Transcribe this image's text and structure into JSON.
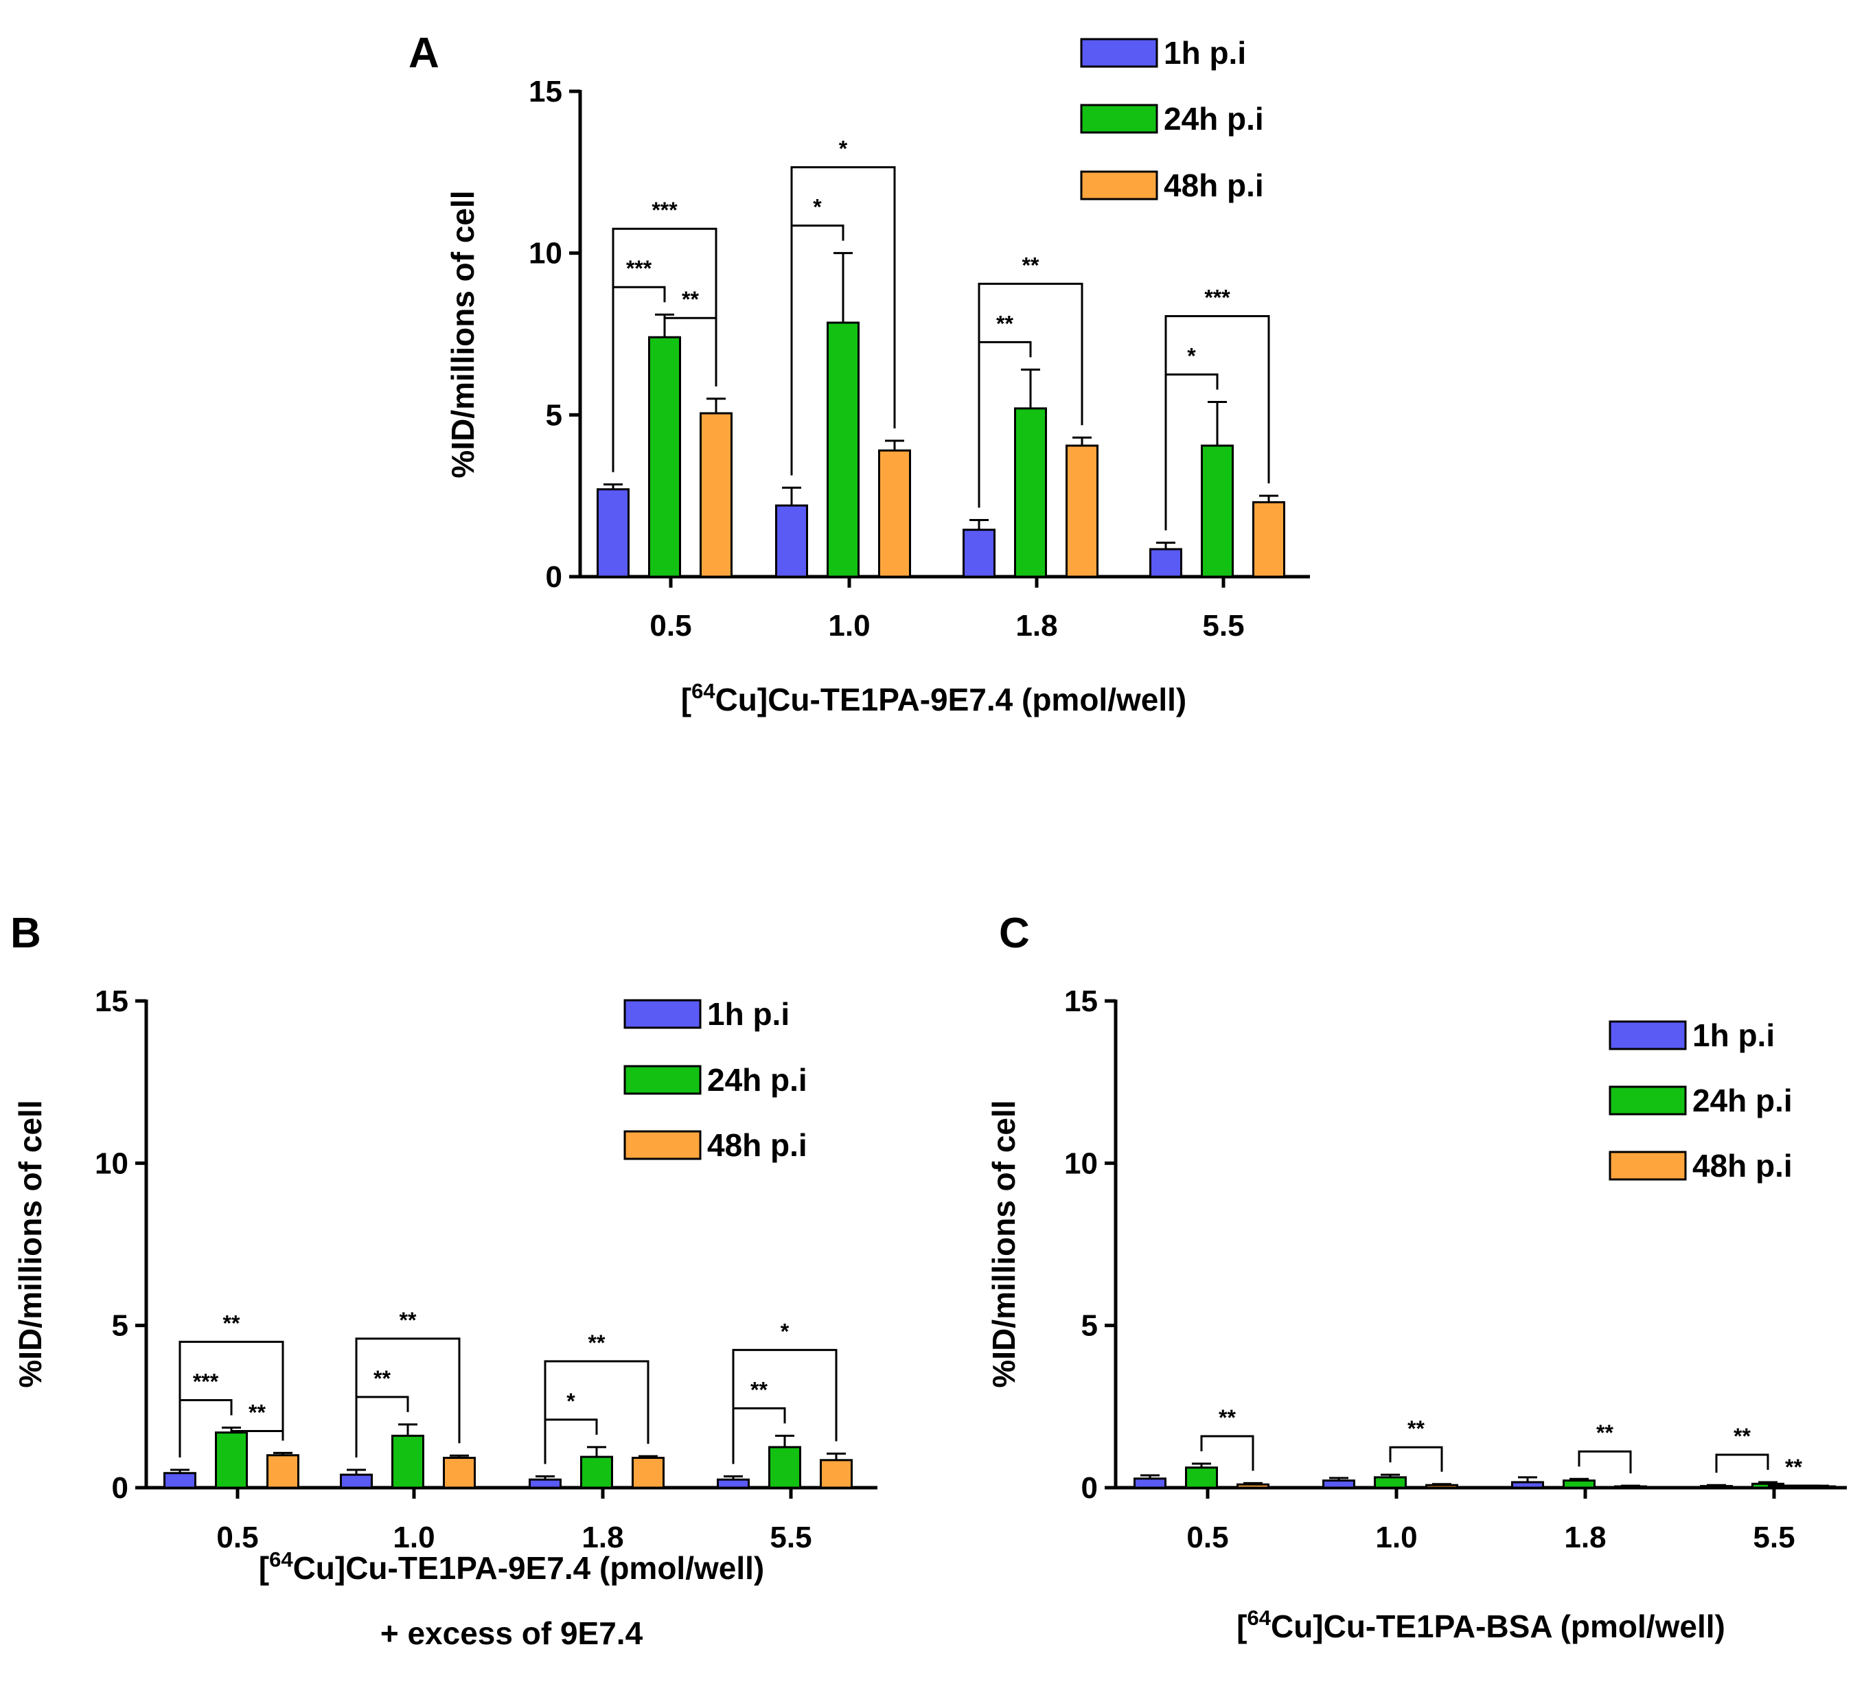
{
  "colors": {
    "1h": "#5a5af5",
    "24h": "#13c113",
    "48h": "#ffa53d",
    "axis": "#000000"
  },
  "chart_data": [
    {
      "panel_label": "A",
      "type": "bar",
      "categories": [
        "0.5",
        "1.0",
        "1.8",
        "5.5"
      ],
      "ylabel": "%ID/millions of cell",
      "xlabel_lines": [
        {
          "pre": "[",
          "sup": "64",
          "post": "Cu]Cu-TE1PA-9E7.4 (pmol/well)"
        }
      ],
      "ylim": [
        0,
        15
      ],
      "yticks": [
        "0",
        "5",
        "10",
        "15"
      ],
      "legend": [
        "1h p.i",
        "24h p.i",
        "48h p.i"
      ],
      "series": [
        {
          "name": "1h p.i",
          "values": [
            2.7,
            2.2,
            1.45,
            0.85
          ],
          "errors": [
            0.15,
            0.55,
            0.3,
            0.2
          ]
        },
        {
          "name": "24h p.i",
          "values": [
            7.4,
            7.85,
            5.2,
            4.05
          ],
          "errors": [
            0.7,
            2.15,
            1.2,
            1.35
          ]
        },
        {
          "name": "48h p.i",
          "values": [
            5.05,
            3.9,
            4.05,
            2.3
          ],
          "errors": [
            0.45,
            0.3,
            0.25,
            0.2
          ]
        }
      ],
      "significance": [
        {
          "cat": 0,
          "from": 0,
          "to": 2,
          "label": "***"
        },
        {
          "cat": 0,
          "from": 0,
          "to": 1,
          "label": "***"
        },
        {
          "cat": 0,
          "from": 1,
          "to": 2,
          "label": "**"
        },
        {
          "cat": 1,
          "from": 0,
          "to": 2,
          "label": "*"
        },
        {
          "cat": 1,
          "from": 0,
          "to": 1,
          "label": "*"
        },
        {
          "cat": 2,
          "from": 0,
          "to": 2,
          "label": "**"
        },
        {
          "cat": 2,
          "from": 0,
          "to": 1,
          "label": "**"
        },
        {
          "cat": 3,
          "from": 0,
          "to": 2,
          "label": "***"
        },
        {
          "cat": 3,
          "from": 0,
          "to": 1,
          "label": "*"
        }
      ]
    },
    {
      "panel_label": "B",
      "type": "bar",
      "categories": [
        "0.5",
        "1.0",
        "1.8",
        "5.5"
      ],
      "ylabel": "%ID/millions of cell",
      "xlabel_lines": [
        {
          "pre": "[",
          "sup": "64",
          "post": "Cu]Cu-TE1PA-9E7.4  (pmol/well)"
        },
        {
          "pre": "",
          "sup": "",
          "post": "+ excess of 9E7.4"
        }
      ],
      "ylim": [
        0,
        15
      ],
      "yticks": [
        "0",
        "5",
        "10",
        "15"
      ],
      "legend": [
        "1h p.i",
        "24h p.i",
        "48h p.i"
      ],
      "series": [
        {
          "name": "1h p.i",
          "values": [
            0.45,
            0.4,
            0.25,
            0.25
          ],
          "errors": [
            0.1,
            0.15,
            0.1,
            0.1
          ]
        },
        {
          "name": "24h p.i",
          "values": [
            1.7,
            1.6,
            0.95,
            1.25
          ],
          "errors": [
            0.15,
            0.35,
            0.3,
            0.35
          ]
        },
        {
          "name": "48h p.i",
          "values": [
            1.0,
            0.92,
            0.92,
            0.85
          ],
          "errors": [
            0.07,
            0.07,
            0.05,
            0.2
          ]
        }
      ],
      "significance": [
        {
          "cat": 0,
          "from": 0,
          "to": 2,
          "label": "**"
        },
        {
          "cat": 0,
          "from": 0,
          "to": 1,
          "label": "***"
        },
        {
          "cat": 0,
          "from": 1,
          "to": 2,
          "label": "**"
        },
        {
          "cat": 1,
          "from": 0,
          "to": 2,
          "label": "**"
        },
        {
          "cat": 1,
          "from": 0,
          "to": 1,
          "label": "**"
        },
        {
          "cat": 2,
          "from": 0,
          "to": 2,
          "label": "**"
        },
        {
          "cat": 2,
          "from": 0,
          "to": 1,
          "label": "*"
        },
        {
          "cat": 3,
          "from": 0,
          "to": 2,
          "label": "*"
        },
        {
          "cat": 3,
          "from": 0,
          "to": 1,
          "label": "**"
        }
      ]
    },
    {
      "panel_label": "C",
      "type": "bar",
      "categories": [
        "0.5",
        "1.0",
        "1.8",
        "5.5"
      ],
      "ylabel": "%ID/millions of cell",
      "xlabel_lines": [
        {
          "pre": "[",
          "sup": "64",
          "post": "Cu]Cu-TE1PA-BSA (pmol/well)"
        }
      ],
      "ylim": [
        0,
        15
      ],
      "yticks": [
        "0",
        "5",
        "10",
        "15"
      ],
      "legend": [
        "1h p.i",
        "24h p.i",
        "48h p.i"
      ],
      "series": [
        {
          "name": "1h p.i",
          "values": [
            0.28,
            0.22,
            0.17,
            0.05
          ],
          "errors": [
            0.1,
            0.08,
            0.15,
            0.03
          ]
        },
        {
          "name": "24h p.i",
          "values": [
            0.62,
            0.32,
            0.22,
            0.12
          ],
          "errors": [
            0.12,
            0.08,
            0.05,
            0.05
          ]
        },
        {
          "name": "48h p.i",
          "values": [
            0.1,
            0.08,
            0.04,
            0.04
          ],
          "errors": [
            0.04,
            0.03,
            0.02,
            0.02
          ]
        }
      ],
      "significance": [
        {
          "cat": 0,
          "from": 1,
          "to": 2,
          "label": "**"
        },
        {
          "cat": 1,
          "from": 1,
          "to": 2,
          "label": "**"
        },
        {
          "cat": 2,
          "from": 1,
          "to": 2,
          "label": "**"
        },
        {
          "cat": 3,
          "from": 0,
          "to": 1,
          "label": "**"
        },
        {
          "cat": 3,
          "from": 1,
          "to": 2,
          "label": "**"
        }
      ]
    }
  ]
}
